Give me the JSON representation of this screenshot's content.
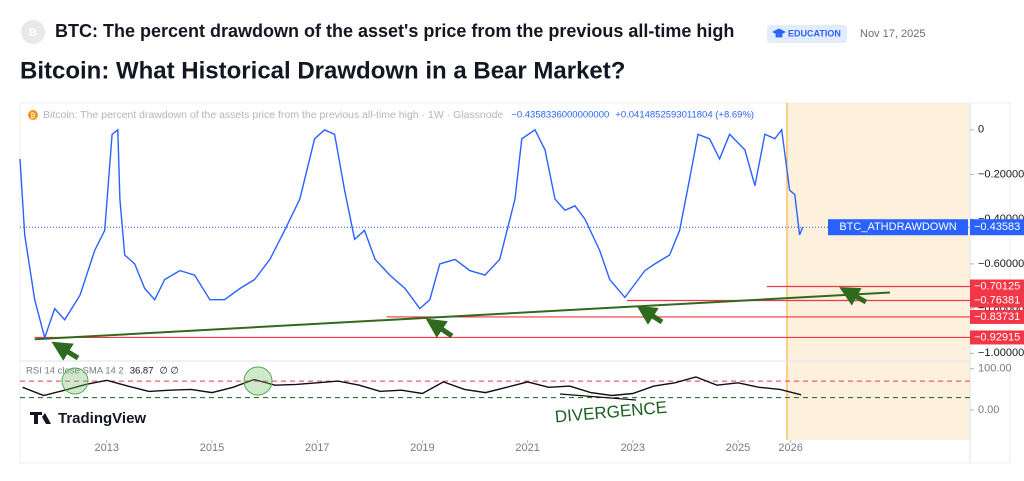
{
  "header": {
    "avatar": "B",
    "title": "BTC: The percent drawdown of the asset's price from the previous all-time high",
    "badge": "EDUCATION",
    "date": "Nov 17, 2025"
  },
  "headline": "Bitcoin: What Historical Drawdown in a Bear Market?",
  "branding": "TradingView",
  "chart_data": [
    {
      "type": "line",
      "icon": "₿",
      "legend_title": "Bitcoin: The percent drawdown of the assets price from the previous all-time high · 1W · Glassnode",
      "legend_value": "−0.4358336000000000",
      "legend_change": "+0.0414852593011804 (+8.69%)",
      "series": [
        {
          "name": "BTC_ATHDRAWDOWN",
          "color": "#2962ff",
          "x": [
            2011.35,
            2011.44,
            2011.63,
            2011.82,
            2012.01,
            2012.2,
            2012.49,
            2012.77,
            2012.96,
            2013.1,
            2013.21,
            2013.25,
            2013.34,
            2013.53,
            2013.72,
            2013.91,
            2014.1,
            2014.39,
            2014.67,
            2014.96,
            2015.24,
            2015.53,
            2015.81,
            2016.1,
            2016.38,
            2016.67,
            2016.95,
            2017.14,
            2017.33,
            2017.52,
            2017.71,
            2017.9,
            2018.1,
            2018.38,
            2018.67,
            2018.95,
            2019.14,
            2019.33,
            2019.62,
            2019.9,
            2020.19,
            2020.47,
            2020.76,
            2020.89,
            2021.14,
            2021.33,
            2021.52,
            2021.71,
            2021.9,
            2022.09,
            2022.37,
            2022.56,
            2022.85,
            2023.04,
            2023.23,
            2023.42,
            2023.7,
            2023.89,
            2024.08,
            2024.24,
            2024.46,
            2024.65,
            2024.84,
            2025.13,
            2025.32,
            2025.51,
            2025.7,
            2025.83,
            2025.98,
            2026.08,
            2026.17,
            2026.23
          ],
          "values": [
            -0.13,
            -0.47,
            -0.76,
            -0.93,
            -0.8,
            -0.85,
            -0.74,
            -0.54,
            -0.45,
            -0.02,
            0,
            -0.31,
            -0.56,
            -0.6,
            -0.71,
            -0.76,
            -0.67,
            -0.63,
            -0.65,
            -0.76,
            -0.76,
            -0.71,
            -0.67,
            -0.58,
            -0.45,
            -0.31,
            -0.04,
            0,
            -0.02,
            -0.27,
            -0.49,
            -0.45,
            -0.58,
            -0.65,
            -0.71,
            -0.8,
            -0.76,
            -0.6,
            -0.58,
            -0.63,
            -0.65,
            -0.58,
            -0.31,
            -0.04,
            0,
            -0.09,
            -0.31,
            -0.36,
            -0.34,
            -0.4,
            -0.54,
            -0.67,
            -0.75,
            -0.69,
            -0.63,
            -0.6,
            -0.56,
            -0.45,
            -0.22,
            -0.02,
            -0.04,
            -0.13,
            -0.02,
            -0.09,
            -0.25,
            -0.02,
            -0.04,
            0,
            -0.27,
            -0.29,
            -0.47,
            -0.4358
          ]
        }
      ],
      "last_value": {
        "value": -0.43583,
        "label": "−0.43583"
      },
      "xlim": [
        2011.35,
        2029.41
      ],
      "xticks": [
        2013,
        2015,
        2017,
        2019,
        2021,
        2023,
        2025,
        2026
      ],
      "ylim": [
        -1.03,
        0.12
      ],
      "yticks": [
        0,
        {
          "value": -0.2,
          "label": "−0.20000"
        },
        {
          "value": -0.4,
          "label": "−0.40000"
        },
        {
          "value": -0.6,
          "label": "−0.60000"
        },
        {
          "value": -0.8,
          "label": "−0.80000"
        },
        {
          "value": -1,
          "label": "−1.00000"
        }
      ],
      "highlight_start": 2025.93,
      "highlight_color": "#fdf0dd",
      "level_color": "#f23645",
      "horizontal_lines": [
        {
          "value": -0.70125,
          "label": "−0.70125",
          "start": 2025.55
        },
        {
          "value": -0.76381,
          "label": "−0.76381",
          "start": 2022.89
        },
        {
          "value": -0.83731,
          "label": "−0.83731",
          "start": 2018.32
        },
        {
          "value": -0.92915,
          "label": "−0.92915",
          "start": 2011.63
        }
      ],
      "trendline": {
        "color": "#33691e",
        "x": [
          2011.63,
          2027.89
        ],
        "values": [
          -0.9375,
          -0.728
        ]
      }
    },
    {
      "type": "line",
      "legend": "RSI 14 close SMA 14 2",
      "legend_extra": "∅ ∅",
      "series": [
        {
          "name": "RSI",
          "color": "#111111",
          "x": [
            2011.4,
            2011.8,
            2012.2,
            2012.6,
            2013.0,
            2013.4,
            2013.8,
            2014.2,
            2014.6,
            2015.0,
            2015.4,
            2015.8,
            2016.2,
            2016.6,
            2017.0,
            2017.4,
            2017.8,
            2018.2,
            2018.6,
            2019.0,
            2019.4,
            2019.8,
            2020.2,
            2020.6,
            2021.0,
            2021.4,
            2021.8,
            2022.2,
            2022.6,
            2023.0,
            2023.4,
            2023.8,
            2024.2,
            2024.6,
            2025.0,
            2025.4,
            2025.8,
            2026.2
          ],
          "values": [
            55,
            35,
            48,
            62,
            72,
            58,
            45,
            48,
            50,
            42,
            55,
            74,
            60,
            62,
            66,
            70,
            60,
            45,
            48,
            40,
            68,
            50,
            42,
            55,
            68,
            55,
            58,
            42,
            35,
            40,
            58,
            66,
            80,
            60,
            66,
            55,
            50,
            36.87
          ]
        }
      ],
      "ylim": [
        -73,
        114
      ],
      "yticks": [
        {
          "value": 100,
          "label": "100.00"
        },
        {
          "value": 0,
          "label": "0.00"
        }
      ],
      "levels": [
        {
          "value": 70,
          "color": "#f23645"
        },
        {
          "value": 30,
          "color": "#1b5e20"
        }
      ],
      "annotation": "DIVERGENCE"
    }
  ]
}
